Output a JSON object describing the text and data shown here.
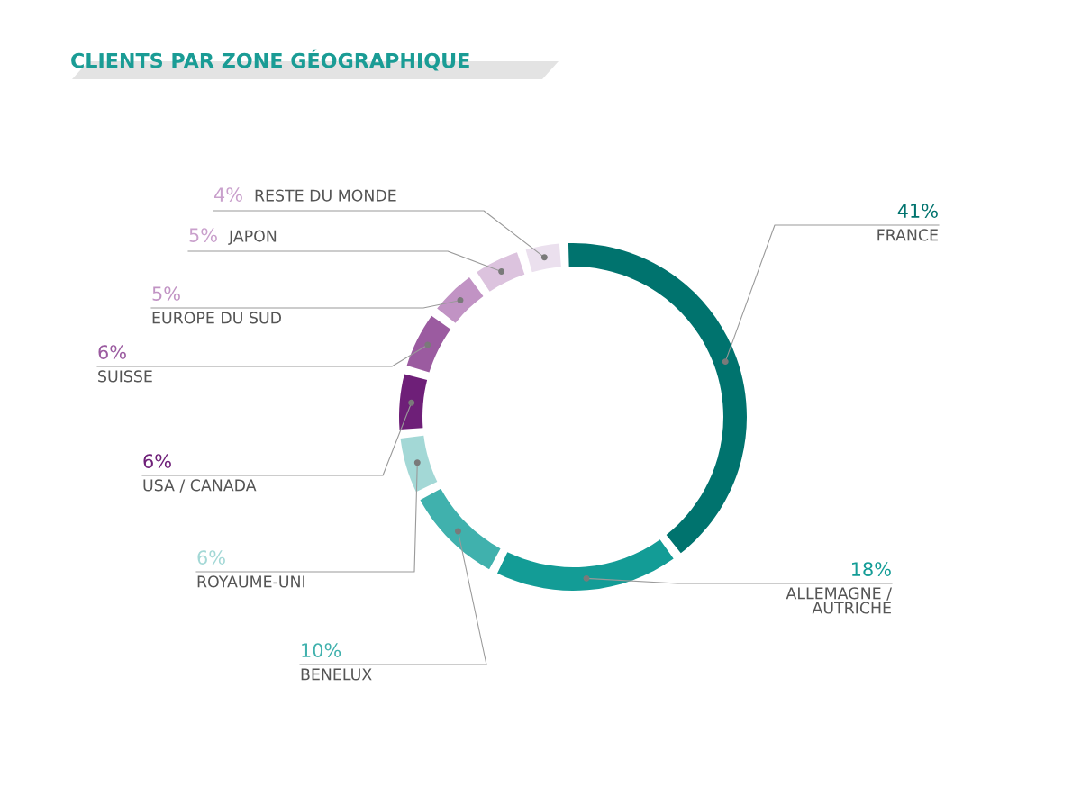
{
  "chart_data": {
    "type": "donut",
    "title": "CLIENTS PAR ZONE GÉOGRAPHIQUE",
    "categories": [
      "FRANCE",
      "ALLEMAGNE /\nAUTRICHE",
      "BENELUX",
      "ROYAUME-UNI",
      "USA / CANADA",
      "SUISSE",
      "EUROPE DU SUD",
      "JAPON",
      "RESTE DU MONDE"
    ],
    "values": [
      41,
      18,
      10,
      6,
      6,
      6,
      5,
      5,
      4
    ],
    "value_labels": [
      "41%",
      "18%",
      "10%",
      "6%",
      "6%",
      "6%",
      "5%",
      "5%",
      "4%"
    ],
    "colors": [
      "#00736e",
      "#139c96",
      "#40b1ad",
      "#a3d8d6",
      "#6e1f78",
      "#9b5ba0",
      "#c193c4",
      "#dcc3de",
      "#ebe0ee"
    ],
    "legend": false
  }
}
